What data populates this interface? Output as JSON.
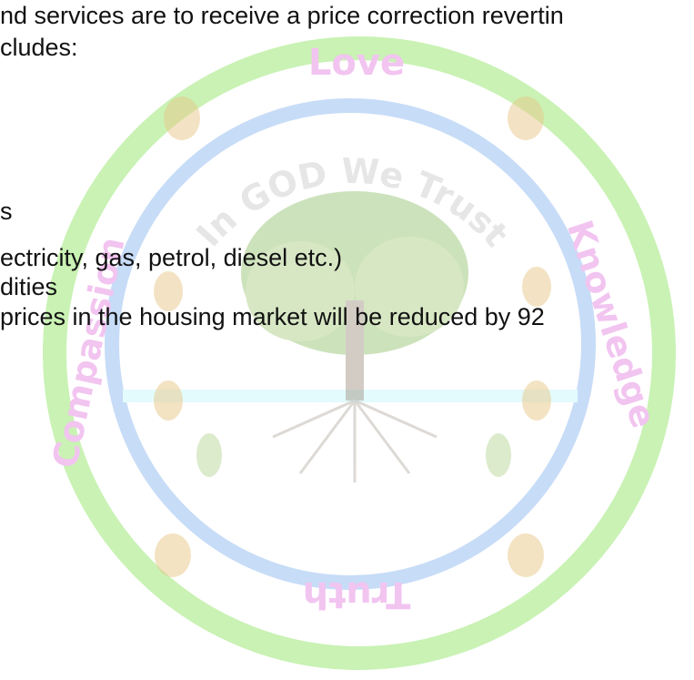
{
  "document": {
    "lines": [
      "nd services are to receive a price correction revertin",
      "cludes:",
      "s",
      "ectricity, gas, petrol, diesel etc.)",
      "dities",
      "prices in the housing market will be reduced by 92"
    ]
  },
  "watermark": {
    "top": "Love",
    "left": "Compassion",
    "right": "Knowledge",
    "bottom": "Truth",
    "motto": "In GOD We Trust"
  }
}
